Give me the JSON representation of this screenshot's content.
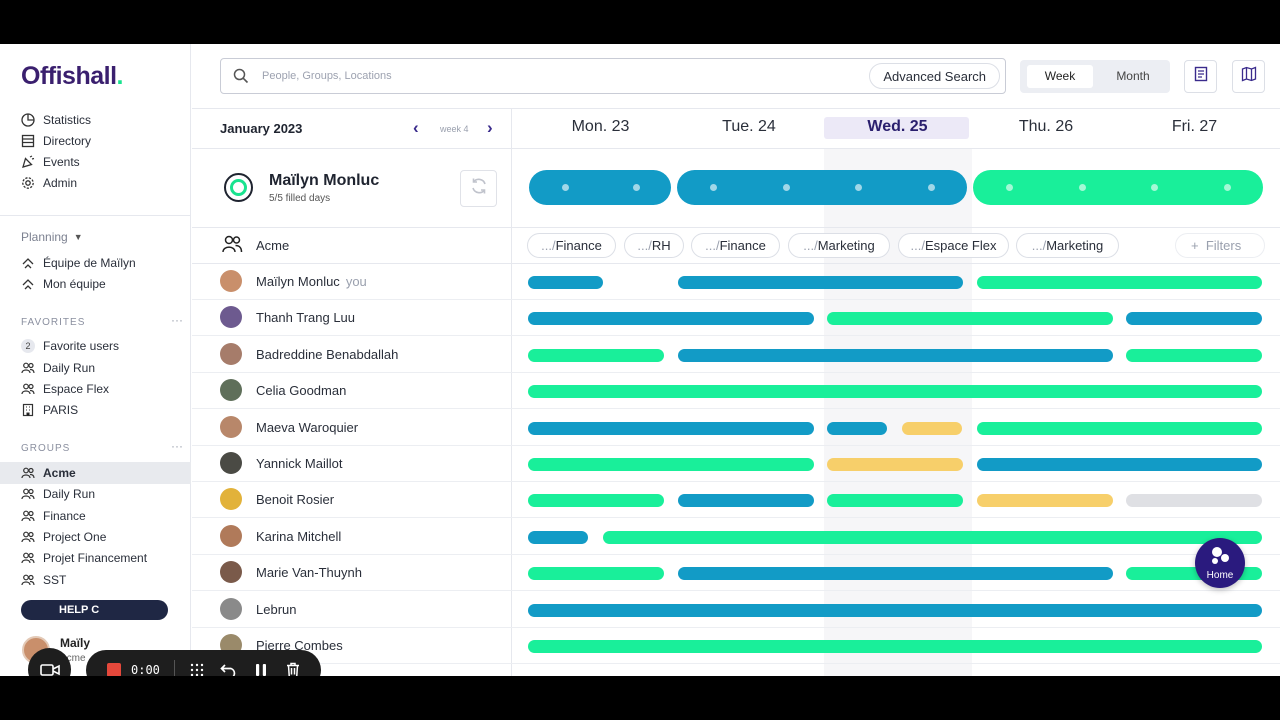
{
  "app": {
    "logo_main": "Offishall",
    "logo_dot": "."
  },
  "colors": {
    "blue": "#129bc6",
    "green": "#19ef9a",
    "yellow": "#f7cf6a",
    "grey": "#dfe0e4",
    "brand": "#2a1a7e"
  },
  "sidebar": {
    "nav": [
      {
        "label": "Statistics",
        "icon": "statistics-icon"
      },
      {
        "label": "Directory",
        "icon": "directory-icon"
      },
      {
        "label": "Events",
        "icon": "events-icon"
      },
      {
        "label": "Admin",
        "icon": "gear-icon"
      }
    ],
    "planning_label": "Planning",
    "planning_items": [
      "Équipe de Maïlyn",
      "Mon équipe"
    ],
    "favorites_title": "FAVORITES",
    "favorites": [
      {
        "label": "Favorite users",
        "count": "2"
      },
      {
        "label": "Daily Run"
      },
      {
        "label": "Espace Flex"
      },
      {
        "label": "PARIS"
      }
    ],
    "groups_title": "GROUPS",
    "groups": [
      "Acme",
      "Daily Run",
      "Finance",
      "Project One",
      "Projet Financement",
      "SST"
    ],
    "active_group": "Acme",
    "help_label": "HELP C",
    "me_name": "Maïly",
    "me_group": "Acme"
  },
  "recorder": {
    "time": "0:00"
  },
  "topbar": {
    "search_placeholder": "People, Groups, Locations",
    "advanced_search": "Advanced Search",
    "view_week": "Week",
    "view_month": "Month"
  },
  "calendar": {
    "month": "January 2023",
    "week_label": "week 4",
    "prev": "‹",
    "next": "›",
    "days": [
      "Mon. 23",
      "Tue. 24",
      "Wed. 25",
      "Thu. 26",
      "Fri. 27"
    ],
    "today_index": 2
  },
  "summary": {
    "name": "Maïlyn Monluc",
    "filled": "5/5 filled days"
  },
  "group_row": {
    "name": "Acme",
    "locations": [
      {
        "prefix": ".../",
        "name": "Finance"
      },
      {
        "prefix": ".../",
        "name": "RH"
      },
      {
        "prefix": ".../",
        "name": "Finance"
      },
      {
        "prefix": ".../",
        "name": "Marketing"
      },
      {
        "prefix": ".../",
        "name": "Espace Flex"
      },
      {
        "prefix": ".../",
        "name": "Marketing"
      }
    ],
    "filters_label": "Filters"
  },
  "people": [
    {
      "name": "Maïlyn Monluc",
      "you": "you",
      "bars": [
        [
          "blue",
          0,
          0.5
        ],
        [
          "blue",
          1,
          2
        ],
        [
          "green",
          3,
          4
        ]
      ]
    },
    {
      "name": "Thanh Trang Luu",
      "bars": [
        [
          "blue",
          0,
          1
        ],
        [
          "green",
          2,
          3
        ],
        [
          "blue",
          4,
          4
        ]
      ]
    },
    {
      "name": "Badreddine Benabdallah",
      "bars": [
        [
          "green",
          0,
          0
        ],
        [
          "blue",
          1,
          3
        ],
        [
          "green",
          4,
          4
        ]
      ]
    },
    {
      "name": "Celia Goodman",
      "bars": [
        [
          "green",
          0,
          4
        ]
      ]
    },
    {
      "name": "Maeva Waroquier",
      "bars": [
        [
          "blue",
          0,
          1
        ],
        [
          "blue",
          2,
          2.4
        ],
        [
          "yellow",
          2.5,
          2.9
        ],
        [
          "green",
          3,
          4
        ]
      ]
    },
    {
      "name": "Yannick Maillot",
      "bars": [
        [
          "green",
          0,
          1
        ],
        [
          "yellow",
          2,
          2
        ],
        [
          "blue",
          3,
          4
        ]
      ]
    },
    {
      "name": "Benoit Rosier",
      "bars": [
        [
          "green",
          0,
          0
        ],
        [
          "blue",
          1,
          1
        ],
        [
          "green",
          2,
          2
        ],
        [
          "yellow",
          3,
          3
        ],
        [
          "grey",
          4,
          4
        ]
      ]
    },
    {
      "name": "Karina Mitchell",
      "bars": [
        [
          "blue",
          0,
          0.4
        ],
        [
          "green",
          0.5,
          4
        ]
      ]
    },
    {
      "name": "Marie Van-Thuynh",
      "bars": [
        [
          "green",
          0,
          0
        ],
        [
          "blue",
          1,
          3
        ],
        [
          "green",
          4,
          4
        ]
      ]
    },
    {
      "name": "Lebrun",
      "bars": [
        [
          "blue",
          0,
          4
        ]
      ]
    },
    {
      "name": "Pierre Combes",
      "bars": [
        [
          "green",
          0,
          4
        ]
      ]
    }
  ],
  "fab": {
    "label": "Home"
  }
}
